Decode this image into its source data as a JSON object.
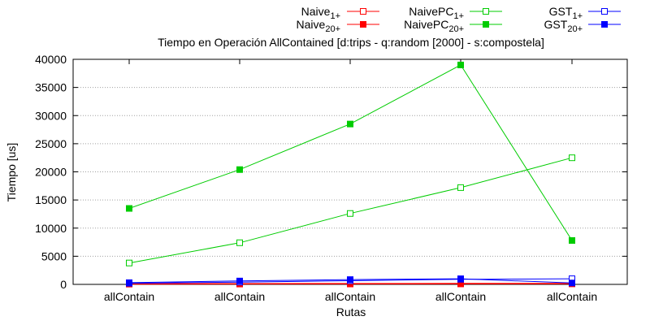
{
  "chart_data": {
    "type": "line",
    "title": "Tiempo en Operación AllContained [d:trips - q:random [2000] - s:compostela]",
    "xlabel": "Rutas",
    "ylabel": "Tiempo [us]",
    "categories": [
      "allContain",
      "allContain",
      "allContain",
      "allContain",
      "allContain"
    ],
    "ylim": [
      0,
      40000
    ],
    "yticks": [
      0,
      5000,
      10000,
      15000,
      20000,
      25000,
      30000,
      35000,
      40000
    ],
    "grid": true,
    "legend_position": "top-right",
    "series": [
      {
        "name": "Naive",
        "subscript": "1+",
        "color": "#ff0000",
        "marker": "open-square",
        "values": [
          120,
          140,
          160,
          170,
          190
        ]
      },
      {
        "name": "Naive",
        "subscript": "20+",
        "color": "#ff0000",
        "marker": "filled-square",
        "values": [
          50,
          60,
          70,
          80,
          90
        ]
      },
      {
        "name": "NaivePC",
        "subscript": "1+",
        "color": "#00cc00",
        "marker": "open-square",
        "values": [
          3800,
          7400,
          12600,
          17200,
          22500
        ]
      },
      {
        "name": "NaivePC",
        "subscript": "20+",
        "color": "#00cc00",
        "marker": "filled-square",
        "values": [
          13500,
          20400,
          28500,
          39000,
          7800
        ]
      },
      {
        "name": "GST",
        "subscript": "1+",
        "color": "#0000ff",
        "marker": "open-square",
        "values": [
          200,
          400,
          650,
          900,
          1000
        ]
      },
      {
        "name": "GST",
        "subscript": "20+",
        "color": "#0000ff",
        "marker": "filled-square",
        "values": [
          300,
          600,
          850,
          1000,
          250
        ]
      }
    ]
  }
}
